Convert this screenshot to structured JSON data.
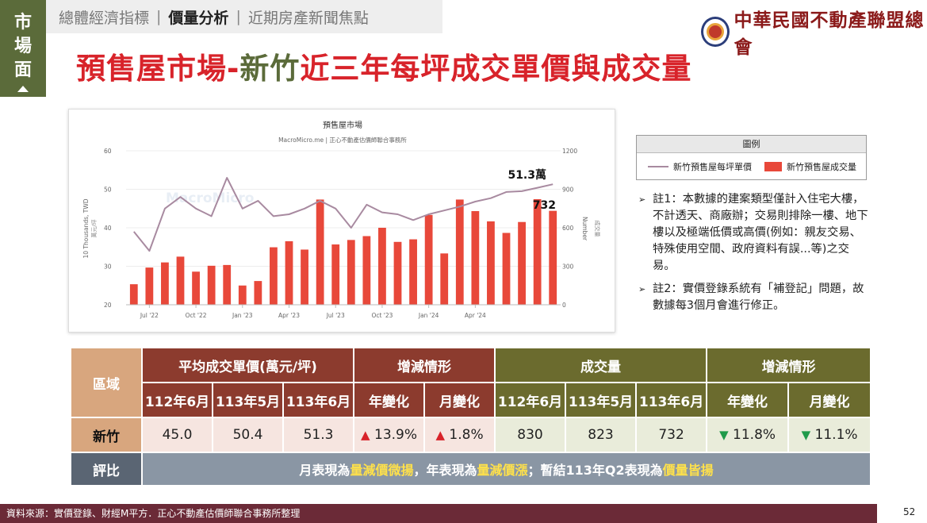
{
  "side_tag": [
    "市",
    "場",
    "面"
  ],
  "nav": {
    "items": [
      "總體經濟指標",
      "價量分析",
      "近期房產新聞焦點"
    ],
    "active_index": 1
  },
  "logo": {
    "text": "中華民國不動產聯盟總會"
  },
  "title": {
    "part1": "預售屋市場-",
    "part2": "新竹",
    "part3": "近三年每坪成交單價與成交量"
  },
  "chart_data": {
    "type": "bar+line",
    "title": "預售屋市場",
    "subtitle": "MacroMicro.me | 正心不動產估價師聯合事務所",
    "watermark": "MacroMicro",
    "ylabel_left": "10 Thousands, TWD",
    "ylabel_left_zh": "萬元/坪",
    "ylabel_right": "Number",
    "ylabel_right_zh": "成交量",
    "ylim_left": [
      20,
      60
    ],
    "ylim_right": [
      0,
      1200
    ],
    "yticks_left": [
      20,
      30,
      40,
      50,
      60
    ],
    "yticks_right": [
      0,
      300,
      600,
      900,
      1200
    ],
    "xtick_labels": [
      "Jul '22",
      "Oct '22",
      "Jan '23",
      "Apr '23",
      "Jul '23",
      "Oct '23",
      "Jan '24",
      "Apr '24"
    ],
    "series": [
      {
        "name": "新竹預售屋每坪單價",
        "kind": "line",
        "color": "#a88aa0",
        "axis": "left",
        "values": [
          39,
          34,
          45,
          48,
          45,
          43,
          53,
          45,
          47,
          43,
          43.5,
          45,
          47,
          45,
          40,
          46,
          44,
          43.5,
          42,
          43.5,
          44.5,
          45.5,
          46.8,
          47.7,
          49.3,
          49.5,
          50.4,
          51.3
        ]
      },
      {
        "name": "新竹預售屋成交量",
        "kind": "bar",
        "color": "#e8483a",
        "axis": "right",
        "values": [
          160,
          290,
          330,
          375,
          258,
          304,
          310,
          150,
          185,
          448,
          495,
          430,
          820,
          470,
          505,
          535,
          600,
          490,
          510,
          700,
          400,
          820,
          730,
          650,
          560,
          645,
          823,
          732
        ]
      }
    ],
    "annotations": [
      {
        "text": "51.3萬"
      },
      {
        "text": "732"
      }
    ]
  },
  "legend": {
    "title": "圖例",
    "line_label": "新竹預售屋每坪單價",
    "bar_label": "新竹預售屋成交量"
  },
  "notes": [
    "註1：本數據的建案類型僅計入住宅大樓，不計透天、商廠辦；交易則排除一樓、地下樓以及極端低價或高價(例如：親友交易、特殊使用空間、政府資料有誤...等)之交易。",
    "註2：實價登錄系統有「補登記」問題，故數據每3個月會進行修正。"
  ],
  "table": {
    "region_header": "區域",
    "price_header": "平均成交單價(萬元/坪)",
    "price_change_header": "增減情形",
    "volume_header": "成交量",
    "volume_change_header": "增減情形",
    "period_cols": [
      "112年6月",
      "113年5月",
      "113年6月"
    ],
    "change_cols": [
      "年變化",
      "月變化"
    ],
    "row": {
      "region": "新竹",
      "prices": [
        "45.0",
        "50.4",
        "51.3"
      ],
      "price_changes": [
        {
          "dir": "up",
          "value": "13.9%"
        },
        {
          "dir": "up",
          "value": "1.8%"
        }
      ],
      "volumes": [
        "830",
        "823",
        "732"
      ],
      "volume_changes": [
        {
          "dir": "down",
          "value": "11.8%"
        },
        {
          "dir": "down",
          "value": "11.1%"
        }
      ]
    },
    "comparison": {
      "label": "評比",
      "p1": "月表現為",
      "h1": "量減價微揚",
      "p2": "，年表現為",
      "h2": "量減價漲",
      "p3": "；暫結113年Q2表現為",
      "h3": "價量皆揚"
    }
  },
  "footer": {
    "source": "資料來源：實價登錄、財經M平方．正心不動產估價師聯合事務所整理"
  },
  "page_number": "52"
}
